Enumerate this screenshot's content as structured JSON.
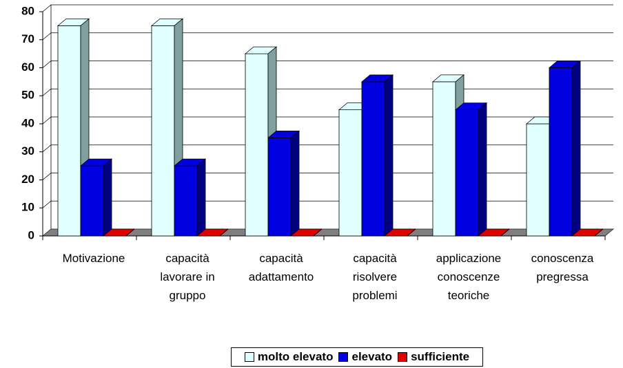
{
  "chart_data": {
    "type": "bar3d",
    "categories": [
      "Motivazione",
      "capacità lavorare in gruppo",
      "capacità adattamento",
      "capacità risolvere problemi",
      "applicazione conoscenze teoriche",
      "conoscenza pregressa"
    ],
    "series": [
      {
        "name": "molto elevato",
        "color": "#e0ffff",
        "side": "#80a0a0",
        "values": [
          75,
          75,
          65,
          45,
          55,
          40
        ]
      },
      {
        "name": "elevato",
        "color": "#0000e0",
        "side": "#000080",
        "values": [
          25,
          25,
          35,
          55,
          45,
          60
        ]
      },
      {
        "name": "sufficiente",
        "color": "#e00000",
        "side": "#800000",
        "values": [
          0,
          0,
          0,
          0,
          0,
          0
        ]
      }
    ],
    "ylim": [
      0,
      80
    ],
    "yticks": [
      0,
      10,
      20,
      30,
      40,
      50,
      60,
      70,
      80
    ],
    "grid": true,
    "legend": "bottom"
  }
}
